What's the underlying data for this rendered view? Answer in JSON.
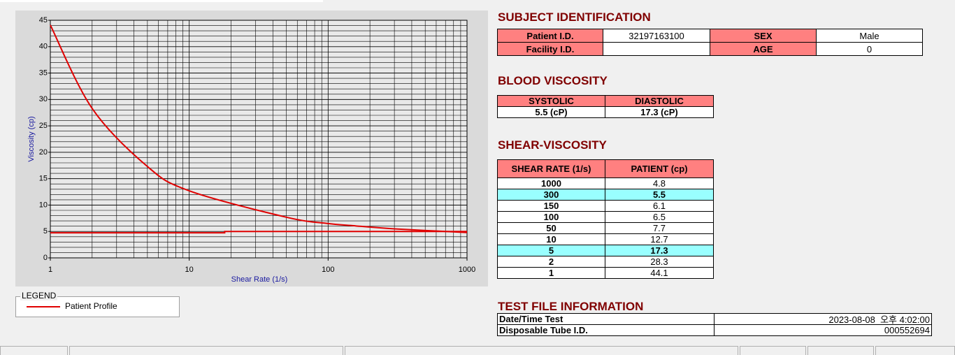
{
  "chart_data": {
    "type": "line",
    "xlabel": "Shear Rate (1/s)",
    "ylabel": "Viscosity (cp)",
    "log_x": true,
    "grid": true,
    "xlim": [
      1,
      1000
    ],
    "ylim": [
      0,
      45
    ],
    "xticks": [
      1,
      10,
      100,
      1000
    ],
    "yticks": [
      0,
      5,
      10,
      15,
      20,
      25,
      30,
      35,
      40,
      45
    ],
    "legend_title": "LEGEND",
    "series": [
      {
        "name": "Patient Profile",
        "color": "#e00000",
        "x": [
          1,
          2,
          5,
          10,
          50,
          100,
          150,
          300,
          1000
        ],
        "values": [
          44.1,
          28.3,
          17.3,
          12.7,
          7.7,
          6.5,
          6.1,
          5.5,
          4.8
        ]
      },
      {
        "color": "#e00000",
        "x": [
          1,
          18,
          18,
          1000
        ],
        "values": [
          4.75,
          4.75,
          5.0,
          5.0
        ]
      }
    ]
  },
  "subject_identification": {
    "title": "SUBJECT IDENTIFICATION",
    "rows": [
      [
        "Patient I.D.",
        "32197163100",
        "SEX",
        "Male"
      ],
      [
        "Facility I.D.",
        null,
        "AGE",
        "0"
      ]
    ]
  },
  "blood_viscosity": {
    "title": "BLOOD VISCOSITY",
    "headers": [
      "SYSTOLIC",
      "DIASTOLIC"
    ],
    "values": [
      "5.5 (cP)",
      "17.3 (cP)"
    ]
  },
  "shear_viscosity": {
    "title": "SHEAR-VISCOSITY",
    "headers": [
      "SHEAR RATE (1/s)",
      "PATIENT (cp)"
    ],
    "rows": [
      [
        1000,
        4.8
      ],
      [
        300,
        5.5
      ],
      [
        150,
        6.1
      ],
      [
        100,
        6.5
      ],
      [
        50,
        7.7
      ],
      [
        10,
        12.7
      ],
      [
        5,
        17.3
      ],
      [
        2,
        28.3
      ],
      [
        1,
        44.1
      ]
    ],
    "highlighted_rows": [
      1,
      6
    ]
  },
  "test_file_information": {
    "title": "TEST FILE INFORMATION",
    "rows": [
      [
        "Date/Time Test",
        "2023-08-08  오후 4:02:00"
      ],
      [
        "Disposable Tube I.D.",
        "000552694"
      ]
    ]
  }
}
